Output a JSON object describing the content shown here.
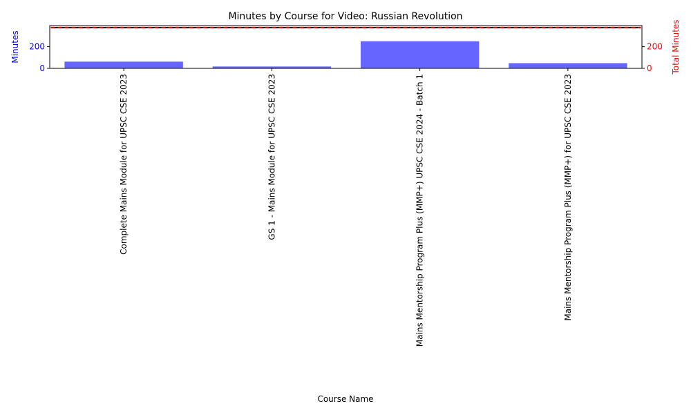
{
  "chart_data": {
    "type": "bar",
    "title": "Minutes by Course for Video: Russian Revolution",
    "xlabel": "Course Name",
    "ylabel": "Minutes",
    "ylabel_right": "Total Minutes",
    "categories": [
      "Complete Mains Module for UPSC CSE 2023",
      "GS 1 - Mains Module for UPSC CSE 2023",
      "Mains Mentorship Program Plus (MMP+) UPSC CSE 2024 - Batch 1",
      "Mains Mentorship Program Plus (MMP+) for UPSC CSE 2023"
    ],
    "values": [
      62,
      17,
      250,
      48
    ],
    "total_minutes": 377,
    "ylim": [
      0,
      395
    ],
    "yticks": [
      0,
      200
    ],
    "ylim_right": [
      0,
      395
    ],
    "yticks_right": [
      0,
      200
    ],
    "grid": false,
    "colors": {
      "bar": "#6666ff",
      "left_axis": "#0000ff",
      "right_axis": "#ff0000",
      "total_line": "#ff0000",
      "total_line_inner": "#000000"
    }
  }
}
